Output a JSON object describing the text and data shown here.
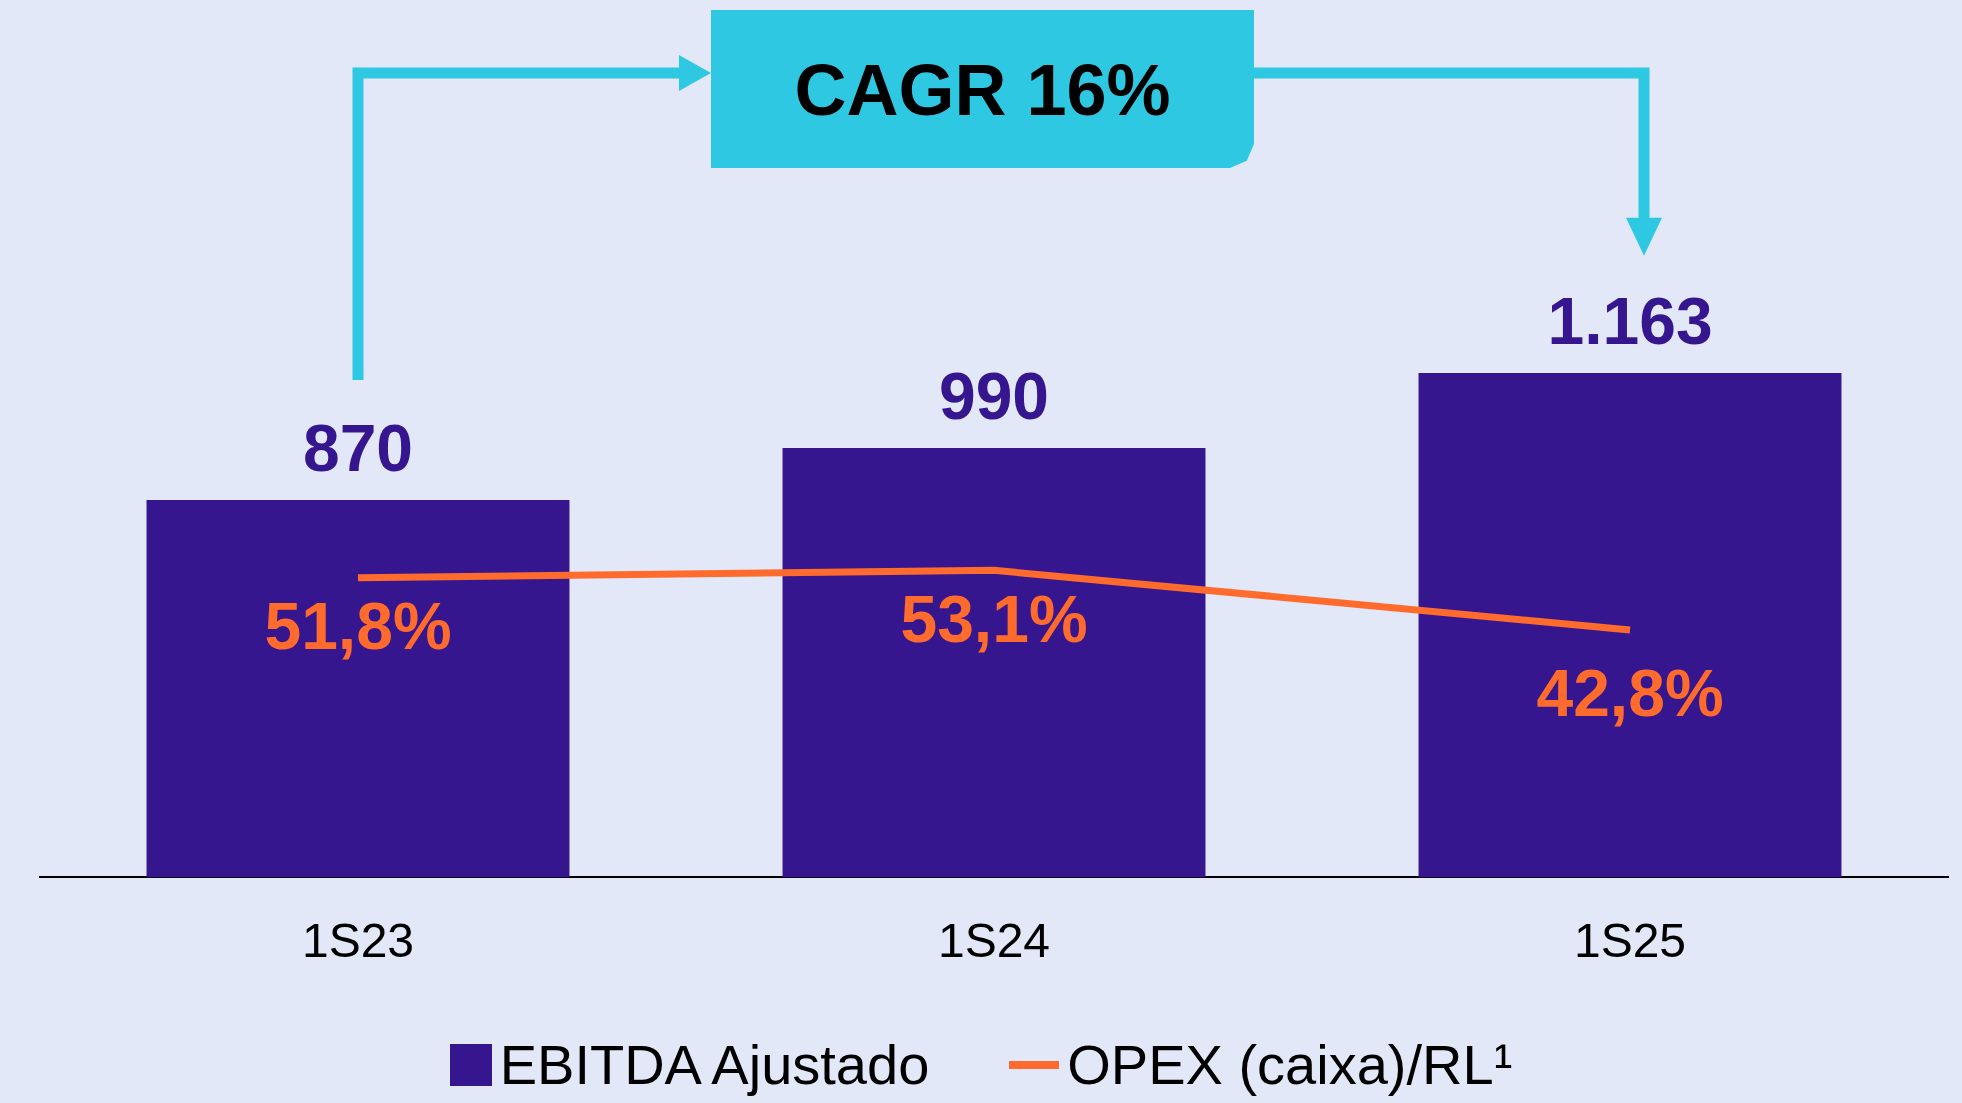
{
  "chart_data": {
    "type": "bar",
    "categories": [
      "1S23",
      "1S24",
      "1S25"
    ],
    "series": [
      {
        "name": "EBITDA Ajustado",
        "color": "#36168f",
        "values": [
          870,
          990,
          1163
        ],
        "value_labels": [
          "870",
          "990",
          "1.163"
        ]
      },
      {
        "name": "OPEX (caixa)/RL¹",
        "type": "line",
        "axis": "y2",
        "color": "#ff6b2c",
        "values": [
          51.8,
          53.1,
          42.8
        ],
        "value_labels": [
          "51,8%",
          "53,1%",
          "42,8%"
        ]
      }
    ],
    "ylim": [
      0,
      2000
    ],
    "y2lim": [
      0,
      150
    ],
    "tick_labels": "x",
    "marker": "none",
    "legend": "bottom",
    "annotations": [
      "CAGR 16%"
    ]
  }
}
